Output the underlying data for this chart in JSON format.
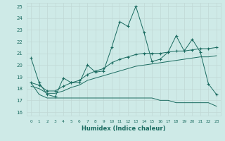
{
  "xlabel": "Humidex (Indice chaleur)",
  "bg_color": "#ceeae7",
  "grid_color": "#c0d8d5",
  "line_color": "#1a6b60",
  "xlim": [
    -0.5,
    23.5
  ],
  "ylim": [
    15.7,
    25.3
  ],
  "xticks": [
    0,
    1,
    2,
    3,
    4,
    5,
    6,
    7,
    8,
    9,
    10,
    11,
    12,
    13,
    14,
    15,
    16,
    17,
    18,
    19,
    20,
    21,
    22,
    23
  ],
  "yticks": [
    16,
    17,
    18,
    19,
    20,
    21,
    22,
    23,
    24,
    25
  ],
  "series1_x": [
    0,
    1,
    2,
    3,
    4,
    5,
    6,
    7,
    8,
    9,
    10,
    11,
    12,
    13,
    14,
    15,
    16,
    17,
    18,
    19,
    20,
    21,
    22,
    23
  ],
  "series1_y": [
    20.6,
    18.5,
    17.5,
    17.3,
    18.9,
    18.5,
    18.5,
    20.0,
    19.4,
    19.5,
    21.5,
    23.7,
    23.3,
    25.0,
    22.8,
    20.3,
    20.5,
    21.1,
    22.5,
    21.2,
    22.2,
    21.1,
    18.4,
    17.5
  ],
  "series2_x": [
    0,
    1,
    2,
    3,
    4,
    5,
    6,
    7,
    8,
    9,
    10,
    11,
    12,
    13,
    14,
    15,
    16,
    17,
    18,
    19,
    20,
    21,
    22,
    23
  ],
  "series2_y": [
    18.5,
    17.5,
    17.2,
    17.2,
    17.2,
    17.2,
    17.2,
    17.2,
    17.2,
    17.2,
    17.2,
    17.2,
    17.2,
    17.2,
    17.2,
    17.2,
    17.0,
    17.0,
    16.8,
    16.8,
    16.8,
    16.8,
    16.8,
    16.5
  ],
  "series3_x": [
    0,
    1,
    2,
    3,
    4,
    5,
    6,
    7,
    8,
    9,
    10,
    11,
    12,
    13,
    14,
    15,
    16,
    17,
    18,
    19,
    20,
    21,
    22,
    23
  ],
  "series3_y": [
    18.5,
    18.3,
    17.8,
    17.8,
    18.2,
    18.5,
    18.7,
    19.2,
    19.5,
    19.7,
    20.2,
    20.5,
    20.7,
    20.9,
    21.0,
    21.0,
    21.0,
    21.1,
    21.2,
    21.2,
    21.3,
    21.4,
    21.4,
    21.5
  ],
  "series4_x": [
    0,
    1,
    2,
    3,
    4,
    5,
    6,
    7,
    8,
    9,
    10,
    11,
    12,
    13,
    14,
    15,
    16,
    17,
    18,
    19,
    20,
    21,
    22,
    23
  ],
  "series4_y": [
    18.2,
    18.0,
    17.6,
    17.6,
    17.8,
    18.1,
    18.3,
    18.7,
    18.9,
    19.1,
    19.3,
    19.5,
    19.7,
    19.9,
    20.0,
    20.1,
    20.2,
    20.3,
    20.4,
    20.5,
    20.6,
    20.7,
    20.7,
    20.8
  ]
}
